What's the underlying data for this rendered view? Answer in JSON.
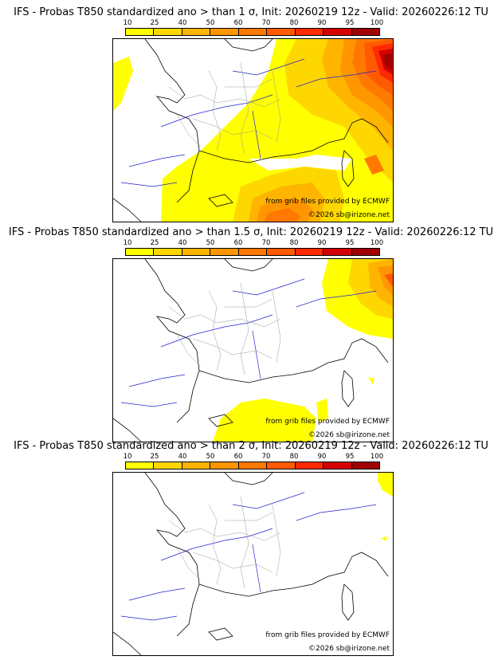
{
  "colorbar": {
    "labels": [
      "10",
      "25",
      "40",
      "50",
      "60",
      "70",
      "80",
      "90",
      "95",
      "100"
    ],
    "colors": [
      "#ffff00",
      "#ffd700",
      "#ffb400",
      "#ff9600",
      "#ff7800",
      "#ff5a00",
      "#ff2a00",
      "#d20000",
      "#a00000",
      "#640000"
    ]
  },
  "panels": [
    {
      "title": "IFS - Probas T850  standardized ano > than 1 σ, Init: 20260219 12z - Valid: 20260226:12 TU",
      "threshold_sigma": "1"
    },
    {
      "title": "IFS - Probas T850  standardized ano > than 1.5 σ, Init: 20260219 12z - Valid: 20260226:12 TU",
      "threshold_sigma": "1.5"
    },
    {
      "title": "IFS - Probas T850  standardized ano > than 2 σ, Init: 20260219 12z - Valid: 20260226:12 TU",
      "threshold_sigma": "2"
    }
  ],
  "credits": {
    "source": "from grib files provided by ECMWF",
    "copyright": "©2026 sb@irizone.net"
  },
  "styles": {
    "coast_color": "#000000",
    "rivers_color": "#2020d0",
    "borders_color": "#9a9a9a"
  }
}
